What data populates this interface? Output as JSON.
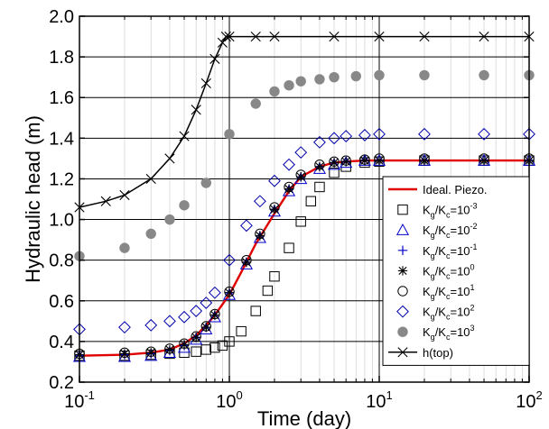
{
  "chart_data": {
    "type": "scatter",
    "xlabel": "Time (day)",
    "ylabel": "Hydraulic head (m)",
    "xscale": "log",
    "xlim": [
      0.1,
      100
    ],
    "ylim": [
      0.2,
      2.0
    ],
    "x_ticks": [
      0.1,
      1,
      10,
      100
    ],
    "x_tick_labels": [
      {
        "base": "10",
        "exp": "-1"
      },
      {
        "base": "10",
        "exp": "0"
      },
      {
        "base": "10",
        "exp": "1"
      },
      {
        "base": "10",
        "exp": "2"
      }
    ],
    "y_ticks": [
      0.2,
      0.4,
      0.6,
      0.8,
      1.0,
      1.2,
      1.4,
      1.6,
      1.8,
      2.0
    ],
    "y_tick_labels": [
      "0.2",
      "0.4",
      "0.6",
      "0.8",
      "1.0",
      "1.2",
      "1.4",
      "1.6",
      "1.8",
      "2.0"
    ],
    "grid": "horizontal lines at major y ticks; vertical lines at x decades and light minor log lines",
    "legend_position": "right",
    "series": [
      {
        "name": "Ideal. Piezo.",
        "legend_label": {
          "base": "Ideal. Piezo."
        },
        "marker": "line",
        "color": "#e00000",
        "x": [
          0.1,
          0.2,
          0.3,
          0.4,
          0.5,
          0.6,
          0.7,
          0.8,
          1.0,
          1.2,
          1.5,
          2.0,
          2.5,
          3.0,
          4.0,
          5.0,
          6.0,
          8.0,
          10,
          20,
          50,
          100
        ],
        "y": [
          0.33,
          0.335,
          0.345,
          0.36,
          0.39,
          0.43,
          0.48,
          0.53,
          0.63,
          0.74,
          0.88,
          1.03,
          1.14,
          1.21,
          1.26,
          1.28,
          1.285,
          1.29,
          1.29,
          1.29,
          1.29,
          1.29
        ]
      },
      {
        "name": "Kg/Kc=10-3",
        "legend_label": {
          "base": "K",
          "sub1": "g",
          "mid": "/K",
          "sub2": "c",
          "eq": "=10",
          "exp": "-3"
        },
        "marker": "square",
        "color": "#000000",
        "x": [
          0.1,
          0.2,
          0.3,
          0.4,
          0.5,
          0.6,
          0.7,
          0.8,
          0.9,
          1.0,
          1.2,
          1.5,
          1.8,
          2.0,
          2.5,
          3.0,
          3.5,
          4.0,
          5.0,
          6.0,
          8.0,
          10,
          20,
          50,
          100
        ],
        "y": [
          0.33,
          0.33,
          0.335,
          0.34,
          0.345,
          0.35,
          0.36,
          0.37,
          0.38,
          0.4,
          0.45,
          0.55,
          0.65,
          0.72,
          0.86,
          0.99,
          1.09,
          1.16,
          1.23,
          1.26,
          1.28,
          1.285,
          1.29,
          1.29,
          1.29
        ]
      },
      {
        "name": "Kg/Kc=10-2",
        "legend_label": {
          "base": "K",
          "sub1": "g",
          "mid": "/K",
          "sub2": "c",
          "eq": "=10",
          "exp": "-2"
        },
        "marker": "triangle",
        "color": "#0000cc",
        "x": [
          0.1,
          0.2,
          0.3,
          0.4,
          0.5,
          0.6,
          0.7,
          0.8,
          1.0,
          1.3,
          1.6,
          2.0,
          2.5,
          3.0,
          4.0,
          5.0,
          6.0,
          8.0,
          10,
          20,
          50,
          100
        ],
        "y": [
          0.325,
          0.325,
          0.33,
          0.345,
          0.37,
          0.41,
          0.46,
          0.52,
          0.63,
          0.78,
          0.91,
          1.04,
          1.14,
          1.2,
          1.25,
          1.27,
          1.28,
          1.29,
          1.29,
          1.29,
          1.29,
          1.29
        ]
      },
      {
        "name": "Kg/Kc=10-1",
        "legend_label": {
          "base": "K",
          "sub1": "g",
          "mid": "/K",
          "sub2": "c",
          "eq": "=10",
          "exp": "-1"
        },
        "marker": "plus",
        "color": "#0000cc",
        "x": [
          0.1,
          0.2,
          0.3,
          0.4,
          0.5,
          0.6,
          0.7,
          0.8,
          1.0,
          1.3,
          1.6,
          2.0,
          2.5,
          3.0,
          4.0,
          5.0,
          6.0,
          8.0,
          10,
          20,
          50,
          100
        ],
        "y": [
          0.33,
          0.335,
          0.34,
          0.355,
          0.38,
          0.42,
          0.47,
          0.53,
          0.64,
          0.79,
          0.92,
          1.05,
          1.15,
          1.21,
          1.26,
          1.28,
          1.285,
          1.29,
          1.29,
          1.29,
          1.29,
          1.29
        ]
      },
      {
        "name": "Kg/Kc=100",
        "legend_label": {
          "base": "K",
          "sub1": "g",
          "mid": "/K",
          "sub2": "c",
          "eq": "=10",
          "exp": "0"
        },
        "marker": "asterisk",
        "color": "#000000",
        "x": [
          0.1,
          0.2,
          0.3,
          0.4,
          0.5,
          0.6,
          0.7,
          0.8,
          1.0,
          1.3,
          1.6,
          2.0,
          2.5,
          3.0,
          4.0,
          5.0,
          6.0,
          8.0,
          10,
          20,
          50,
          100
        ],
        "y": [
          0.335,
          0.34,
          0.345,
          0.36,
          0.385,
          0.42,
          0.47,
          0.53,
          0.64,
          0.79,
          0.92,
          1.05,
          1.15,
          1.21,
          1.26,
          1.28,
          1.285,
          1.29,
          1.29,
          1.29,
          1.29,
          1.29
        ]
      },
      {
        "name": "Kg/Kc=101",
        "legend_label": {
          "base": "K",
          "sub1": "g",
          "mid": "/K",
          "sub2": "c",
          "eq": "=10",
          "exp": "1"
        },
        "marker": "circle",
        "color": "#000000",
        "x": [
          0.1,
          0.2,
          0.3,
          0.4,
          0.5,
          0.6,
          0.7,
          0.8,
          1.0,
          1.3,
          1.6,
          2.0,
          2.5,
          3.0,
          4.0,
          5.0,
          6.0,
          8.0,
          10,
          20,
          50,
          100
        ],
        "y": [
          0.34,
          0.345,
          0.35,
          0.365,
          0.39,
          0.425,
          0.475,
          0.535,
          0.645,
          0.8,
          0.93,
          1.06,
          1.16,
          1.22,
          1.27,
          1.285,
          1.29,
          1.295,
          1.3,
          1.3,
          1.3,
          1.3
        ]
      },
      {
        "name": "Kg/Kc=102",
        "legend_label": {
          "base": "K",
          "sub1": "g",
          "mid": "/K",
          "sub2": "c",
          "eq": "=10",
          "exp": "2"
        },
        "marker": "diamond",
        "color": "#0000aa",
        "x": [
          0.1,
          0.2,
          0.3,
          0.4,
          0.5,
          0.6,
          0.7,
          0.8,
          1.0,
          1.3,
          1.6,
          2.0,
          2.5,
          3.0,
          4.0,
          5.0,
          6.0,
          8.0,
          10,
          20,
          50,
          100
        ],
        "y": [
          0.46,
          0.47,
          0.48,
          0.5,
          0.52,
          0.55,
          0.59,
          0.64,
          0.8,
          0.97,
          1.09,
          1.19,
          1.27,
          1.33,
          1.38,
          1.4,
          1.41,
          1.415,
          1.42,
          1.42,
          1.42,
          1.42
        ]
      },
      {
        "name": "Kg/Kc=103",
        "legend_label": {
          "base": "K",
          "sub1": "g",
          "mid": "/K",
          "sub2": "c",
          "eq": "=10",
          "exp": "3"
        },
        "marker": "filled-circle",
        "color": "#888888",
        "x": [
          0.1,
          0.2,
          0.3,
          0.4,
          0.5,
          0.7,
          1.0,
          1.5,
          2.0,
          2.5,
          3.0,
          4.0,
          5.0,
          7.0,
          10,
          20,
          50,
          100
        ],
        "y": [
          0.82,
          0.86,
          0.93,
          1.0,
          1.07,
          1.18,
          1.42,
          1.57,
          1.63,
          1.66,
          1.68,
          1.69,
          1.7,
          1.705,
          1.71,
          1.71,
          1.71,
          1.71
        ]
      },
      {
        "name": "h(top)",
        "legend_label": {
          "base": "h(top)"
        },
        "marker": "cross-line",
        "color": "#000000",
        "x": [
          0.1,
          0.15,
          0.2,
          0.3,
          0.4,
          0.5,
          0.6,
          0.7,
          0.8,
          0.9,
          0.95,
          1.0,
          1.5,
          2,
          5,
          10,
          20,
          50,
          100
        ],
        "y": [
          1.06,
          1.09,
          1.12,
          1.2,
          1.3,
          1.41,
          1.54,
          1.67,
          1.79,
          1.87,
          1.9,
          1.9,
          1.9,
          1.9,
          1.9,
          1.9,
          1.9,
          1.9,
          1.9
        ]
      }
    ]
  }
}
